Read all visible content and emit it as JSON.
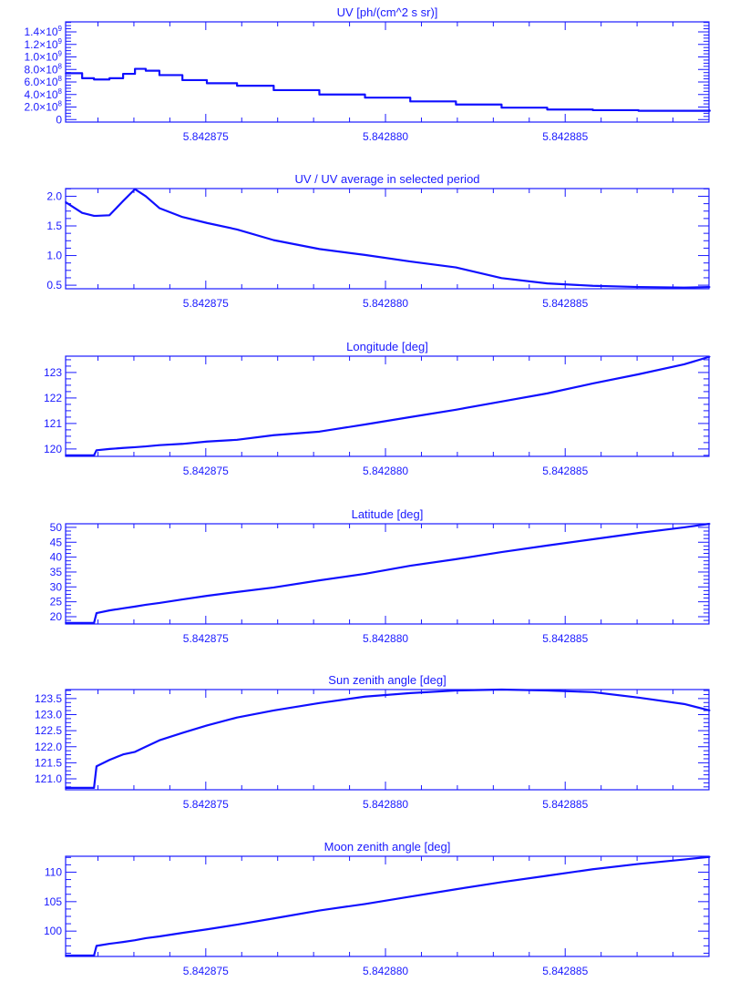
{
  "colors": {
    "line": "#1010ff",
    "axis": "#1a1aff",
    "background": "#ffffff"
  },
  "chart_data": [
    {
      "type": "line",
      "title": "UV [ph/(cm^2 s sr)]",
      "xlim": [
        5.8428711,
        5.842889
      ],
      "x_ticks": [
        5.842875,
        5.84288,
        5.842885
      ],
      "x_tick_labels": [
        "5.842875",
        "5.842880",
        "5.842885"
      ],
      "ylim": [
        -40000000,
        1560000000
      ],
      "y_ticks": [
        0,
        200000000,
        400000000,
        600000000,
        800000000,
        1000000000,
        1200000000,
        1400000000
      ],
      "y_tick_labels": [
        {
          "mantissa": "0",
          "exp": ""
        },
        {
          "mantissa": "2.0×10",
          "exp": "8"
        },
        {
          "mantissa": "4.0×10",
          "exp": "8"
        },
        {
          "mantissa": "6.0×10",
          "exp": "8"
        },
        {
          "mantissa": "8.0×10",
          "exp": "8"
        },
        {
          "mantissa": "1.0×10",
          "exp": "9"
        },
        {
          "mantissa": "1.2×10",
          "exp": "9"
        },
        {
          "mantissa": "1.4×10",
          "exp": "9"
        }
      ],
      "x": [
        5.8428711,
        5.84287156,
        5.84287189,
        5.84287196,
        5.84287232,
        5.8428727,
        5.84287303,
        5.84287333,
        5.84287371,
        5.84287435,
        5.84287503,
        5.84287587,
        5.84287689,
        5.84287816,
        5.84287943,
        5.84288069,
        5.84288196,
        5.84288323,
        5.8428845,
        5.84288577,
        5.84288704,
        5.84288831,
        5.84288902
      ],
      "y": [
        740000000,
        660000000,
        640000000,
        640000000,
        660000000,
        730000000,
        810000000,
        780000000,
        710000000,
        630000000,
        580000000,
        540000000,
        470000000,
        400000000,
        350000000,
        290000000,
        240000000,
        190000000,
        160000000,
        150000000,
        140000000,
        140000000,
        150000000
      ],
      "step": true
    },
    {
      "type": "line",
      "title": "UV / UV average in selected period",
      "xlim": [
        5.8428711,
        5.842889
      ],
      "x_ticks": [
        5.842875,
        5.84288,
        5.842885
      ],
      "x_tick_labels": [
        "5.842875",
        "5.842880",
        "5.842885"
      ],
      "ylim": [
        0.44,
        2.13
      ],
      "y_ticks": [
        0.5,
        1.0,
        1.5,
        2.0
      ],
      "y_tick_labels": [
        {
          "mantissa": "0.5",
          "exp": ""
        },
        {
          "mantissa": "1.0",
          "exp": ""
        },
        {
          "mantissa": "1.5",
          "exp": ""
        },
        {
          "mantissa": "2.0",
          "exp": ""
        }
      ],
      "x": [
        5.8428711,
        5.84287156,
        5.84287189,
        5.84287196,
        5.84287232,
        5.8428727,
        5.84287303,
        5.84287333,
        5.84287371,
        5.84287435,
        5.84287503,
        5.84287587,
        5.84287689,
        5.84287816,
        5.84287943,
        5.84288069,
        5.84288196,
        5.84288323,
        5.8428845,
        5.84288577,
        5.84288704,
        5.84288831,
        5.84288902
      ],
      "y": [
        1.9,
        1.72,
        1.67,
        1.67,
        1.68,
        1.92,
        2.12,
        2.0,
        1.8,
        1.65,
        1.55,
        1.44,
        1.26,
        1.11,
        1.01,
        0.9,
        0.8,
        0.62,
        0.53,
        0.49,
        0.47,
        0.46,
        0.47
      ]
    },
    {
      "type": "line",
      "title": "Longitude [deg]",
      "xlim": [
        5.8428711,
        5.842889
      ],
      "x_ticks": [
        5.842875,
        5.84288,
        5.842885
      ],
      "x_tick_labels": [
        "5.842875",
        "5.842880",
        "5.842885"
      ],
      "ylim": [
        119.71,
        123.64
      ],
      "y_ticks": [
        120,
        121,
        122,
        123
      ],
      "y_tick_labels": [
        {
          "mantissa": "120",
          "exp": ""
        },
        {
          "mantissa": "121",
          "exp": ""
        },
        {
          "mantissa": "122",
          "exp": ""
        },
        {
          "mantissa": "123",
          "exp": ""
        }
      ],
      "x": [
        5.8428711,
        5.84287156,
        5.84287189,
        5.84287196,
        5.84287232,
        5.8428727,
        5.84287303,
        5.84287333,
        5.84287371,
        5.84287435,
        5.84287503,
        5.84287587,
        5.84287689,
        5.84287816,
        5.84287943,
        5.84288069,
        5.84288196,
        5.84288323,
        5.8428845,
        5.84288577,
        5.84288704,
        5.84288831,
        5.84288902
      ],
      "y": [
        119.75,
        119.75,
        119.75,
        119.95,
        120.0,
        120.04,
        120.07,
        120.1,
        120.15,
        120.2,
        120.29,
        120.36,
        120.54,
        120.68,
        120.96,
        121.25,
        121.54,
        121.86,
        122.18,
        122.57,
        122.93,
        123.32,
        123.62
      ]
    },
    {
      "type": "line",
      "title": "Latitude [deg]",
      "xlim": [
        5.8428711,
        5.842889
      ],
      "x_ticks": [
        5.842875,
        5.84288,
        5.842885
      ],
      "x_tick_labels": [
        "5.842875",
        "5.842880",
        "5.842885"
      ],
      "ylim": [
        17.55,
        51.2
      ],
      "y_ticks": [
        20,
        25,
        30,
        35,
        40,
        45,
        50
      ],
      "y_tick_labels": [
        {
          "mantissa": "20",
          "exp": ""
        },
        {
          "mantissa": "25",
          "exp": ""
        },
        {
          "mantissa": "30",
          "exp": ""
        },
        {
          "mantissa": "35",
          "exp": ""
        },
        {
          "mantissa": "40",
          "exp": ""
        },
        {
          "mantissa": "45",
          "exp": ""
        },
        {
          "mantissa": "50",
          "exp": ""
        }
      ],
      "x": [
        5.8428711,
        5.84287156,
        5.84287189,
        5.84287196,
        5.84287232,
        5.8428727,
        5.84287303,
        5.84287333,
        5.84287371,
        5.84287435,
        5.84287503,
        5.84287587,
        5.84287689,
        5.84287816,
        5.84287943,
        5.84288069,
        5.84288196,
        5.84288323,
        5.8428845,
        5.84288577,
        5.84288704,
        5.84288831,
        5.84288902
      ],
      "y": [
        17.9,
        17.9,
        17.9,
        21.2,
        22.1,
        22.8,
        23.4,
        24.0,
        24.6,
        25.8,
        27.0,
        28.3,
        29.8,
        32.2,
        34.4,
        37.1,
        39.3,
        41.7,
        43.9,
        46.0,
        48.1,
        50.0,
        51.2
      ]
    },
    {
      "type": "line",
      "title": "Sun zenith angle [deg]",
      "xlim": [
        5.8428711,
        5.842889
      ],
      "x_ticks": [
        5.842875,
        5.84288,
        5.842885
      ],
      "x_tick_labels": [
        "5.842875",
        "5.842880",
        "5.842885"
      ],
      "ylim": [
        120.66,
        123.78
      ],
      "y_ticks": [
        121.0,
        121.5,
        122.0,
        122.5,
        123.0,
        123.5
      ],
      "y_tick_labels": [
        {
          "mantissa": "121.0",
          "exp": ""
        },
        {
          "mantissa": "121.5",
          "exp": ""
        },
        {
          "mantissa": "122.0",
          "exp": ""
        },
        {
          "mantissa": "122.5",
          "exp": ""
        },
        {
          "mantissa": "123.0",
          "exp": ""
        },
        {
          "mantissa": "123.5",
          "exp": ""
        }
      ],
      "x": [
        5.8428711,
        5.84287156,
        5.84287189,
        5.84287196,
        5.84287232,
        5.8428727,
        5.84287303,
        5.84287333,
        5.84287371,
        5.84287435,
        5.84287503,
        5.84287587,
        5.84287689,
        5.84287816,
        5.84287943,
        5.84288069,
        5.84288196,
        5.84288323,
        5.8428845,
        5.84288577,
        5.84288704,
        5.84288831,
        5.84288902
      ],
      "y": [
        120.72,
        120.72,
        120.72,
        121.39,
        121.59,
        121.76,
        121.84,
        122.0,
        122.2,
        122.43,
        122.66,
        122.91,
        123.13,
        123.36,
        123.56,
        123.67,
        123.75,
        123.78,
        123.75,
        123.7,
        123.53,
        123.33,
        123.13
      ]
    },
    {
      "type": "line",
      "title": "Moon zenith angle [deg]",
      "xlim": [
        5.8428711,
        5.842889
      ],
      "x_ticks": [
        5.842875,
        5.84288,
        5.842885
      ],
      "x_tick_labels": [
        "5.842875",
        "5.842880",
        "5.842885"
      ],
      "ylim": [
        95.7,
        112.7
      ],
      "y_ticks": [
        100,
        105,
        110
      ],
      "y_tick_labels": [
        {
          "mantissa": "100",
          "exp": ""
        },
        {
          "mantissa": "105",
          "exp": ""
        },
        {
          "mantissa": "110",
          "exp": ""
        }
      ],
      "x": [
        5.8428711,
        5.84287156,
        5.84287189,
        5.84287196,
        5.84287232,
        5.8428727,
        5.84287303,
        5.84287333,
        5.84287371,
        5.84287435,
        5.84287503,
        5.84287587,
        5.84287689,
        5.84287816,
        5.84287943,
        5.84288069,
        5.84288196,
        5.84288323,
        5.8428845,
        5.84288577,
        5.84288704,
        5.84288831,
        5.84288902
      ],
      "y": [
        95.85,
        95.85,
        95.85,
        97.5,
        97.85,
        98.15,
        98.45,
        98.8,
        99.1,
        99.7,
        100.3,
        101.1,
        102.15,
        103.5,
        104.6,
        105.85,
        107.1,
        108.3,
        109.4,
        110.5,
        111.4,
        112.15,
        112.6
      ]
    }
  ]
}
